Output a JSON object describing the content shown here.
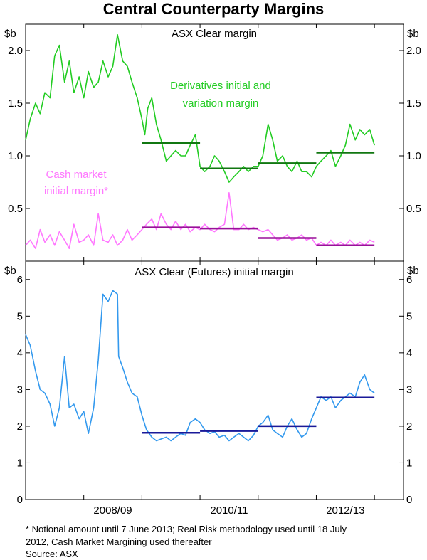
{
  "chart_data": {
    "title": "Central Counterparty Margins",
    "x_tick_labels": [
      "2008/09",
      "2010/11",
      "2012/13"
    ],
    "panels": [
      {
        "title": "ASX Clear margin",
        "unit_left": "$b",
        "unit_right": "$b",
        "ylim": [
          0,
          2.25
        ],
        "y_ticks": [
          0.5,
          1.0,
          1.5,
          2.0
        ],
        "y_tick_labels": [
          "0.5",
          "1.0",
          "1.5",
          "2.0"
        ],
        "series": [
          {
            "name": "Derivatives initial and variation margin",
            "label_lines": [
              "Derivatives initial and",
              "variation margin"
            ],
            "color": "#22cc22",
            "type": "line",
            "x": [
              2007.0,
              2007.08,
              2007.17,
              2007.25,
              2007.33,
              2007.42,
              2007.5,
              2007.58,
              2007.67,
              2007.75,
              2007.83,
              2007.92,
              2008.0,
              2008.08,
              2008.17,
              2008.25,
              2008.33,
              2008.42,
              2008.5,
              2008.58,
              2008.67,
              2008.75,
              2008.83,
              2008.92,
              2009.0,
              2009.05,
              2009.1,
              2009.17,
              2009.25,
              2009.33,
              2009.42,
              2009.5,
              2009.58,
              2009.67,
              2009.75,
              2009.83,
              2009.92,
              2010.0,
              2010.08,
              2010.17,
              2010.25,
              2010.33,
              2010.42,
              2010.5,
              2010.58,
              2010.67,
              2010.75,
              2010.83,
              2010.92,
              2011.0,
              2011.08,
              2011.17,
              2011.25,
              2011.33,
              2011.42,
              2011.5,
              2011.58,
              2011.67,
              2011.75,
              2011.83,
              2011.92,
              2012.0,
              2012.08,
              2012.17,
              2012.25,
              2012.33,
              2012.42,
              2012.5,
              2012.58,
              2012.67,
              2012.75,
              2012.83,
              2012.92,
              2013.0
            ],
            "y": [
              1.15,
              1.35,
              1.5,
              1.4,
              1.6,
              1.55,
              1.95,
              2.05,
              1.7,
              1.9,
              1.6,
              1.75,
              1.55,
              1.8,
              1.65,
              1.7,
              1.9,
              1.75,
              1.85,
              2.15,
              1.9,
              1.85,
              1.7,
              1.55,
              1.35,
              1.2,
              1.45,
              1.55,
              1.3,
              1.15,
              0.95,
              1.0,
              1.05,
              1.0,
              1.0,
              1.1,
              1.2,
              0.9,
              0.85,
              0.9,
              1.0,
              0.95,
              0.85,
              0.75,
              0.8,
              0.85,
              0.9,
              0.85,
              0.9,
              0.9,
              1.0,
              1.3,
              1.15,
              0.95,
              1.0,
              0.9,
              0.85,
              0.95,
              0.85,
              0.85,
              0.8,
              0.9,
              0.95,
              1.0,
              1.05,
              0.9,
              1.0,
              1.1,
              1.3,
              1.15,
              1.25,
              1.2,
              1.25,
              1.1
            ]
          },
          {
            "name": "Cash market initial margin*",
            "label_lines": [
              "Cash market",
              "initial margin*"
            ],
            "color": "#ff77ff",
            "type": "line",
            "x": [
              2007.0,
              2007.08,
              2007.17,
              2007.25,
              2007.33,
              2007.42,
              2007.5,
              2007.58,
              2007.67,
              2007.75,
              2007.83,
              2007.92,
              2008.0,
              2008.08,
              2008.17,
              2008.25,
              2008.33,
              2008.42,
              2008.5,
              2008.58,
              2008.67,
              2008.75,
              2008.83,
              2008.92,
              2009.0,
              2009.08,
              2009.17,
              2009.25,
              2009.33,
              2009.42,
              2009.5,
              2009.58,
              2009.67,
              2009.75,
              2009.83,
              2009.92,
              2010.0,
              2010.08,
              2010.17,
              2010.25,
              2010.33,
              2010.42,
              2010.5,
              2010.58,
              2010.67,
              2010.75,
              2010.83,
              2010.92,
              2011.0,
              2011.08,
              2011.17,
              2011.25,
              2011.33,
              2011.42,
              2011.5,
              2011.58,
              2011.67,
              2011.75,
              2011.83,
              2011.92,
              2012.0,
              2012.08,
              2012.17,
              2012.25,
              2012.33,
              2012.42,
              2012.5,
              2012.58,
              2012.67,
              2012.75,
              2012.83,
              2012.92,
              2013.0
            ],
            "y": [
              0.15,
              0.2,
              0.12,
              0.3,
              0.18,
              0.25,
              0.15,
              0.28,
              0.2,
              0.12,
              0.35,
              0.18,
              0.2,
              0.25,
              0.15,
              0.45,
              0.2,
              0.18,
              0.25,
              0.15,
              0.2,
              0.3,
              0.2,
              0.25,
              0.3,
              0.35,
              0.4,
              0.3,
              0.45,
              0.35,
              0.3,
              0.38,
              0.3,
              0.35,
              0.28,
              0.32,
              0.3,
              0.35,
              0.3,
              0.28,
              0.32,
              0.35,
              0.65,
              0.3,
              0.3,
              0.35,
              0.3,
              0.32,
              0.3,
              0.28,
              0.3,
              0.25,
              0.2,
              0.22,
              0.25,
              0.2,
              0.22,
              0.25,
              0.2,
              0.22,
              0.15,
              0.18,
              0.15,
              0.2,
              0.15,
              0.18,
              0.15,
              0.2,
              0.15,
              0.18,
              0.15,
              0.2,
              0.18
            ]
          }
        ],
        "averages": [
          {
            "series": "Derivatives initial and variation margin",
            "color": "#117711",
            "segments": [
              {
                "x0": 2009.0,
                "x1": 2010.0,
                "y": 1.12
              },
              {
                "x0": 2010.0,
                "x1": 2011.0,
                "y": 0.88
              },
              {
                "x0": 2011.0,
                "x1": 2012.0,
                "y": 0.93
              },
              {
                "x0": 2012.0,
                "x1": 2013.0,
                "y": 1.03
              }
            ]
          },
          {
            "series": "Cash market initial margin*",
            "color": "#991199",
            "segments": [
              {
                "x0": 2009.0,
                "x1": 2010.0,
                "y": 0.32
              },
              {
                "x0": 2010.0,
                "x1": 2011.0,
                "y": 0.31
              },
              {
                "x0": 2011.0,
                "x1": 2012.0,
                "y": 0.22
              },
              {
                "x0": 2012.0,
                "x1": 2013.0,
                "y": 0.15
              }
            ]
          }
        ]
      },
      {
        "title": "ASX Clear (Futures) initial margin",
        "unit_left": "$b",
        "unit_right": "$b",
        "ylim": [
          0,
          6.5
        ],
        "y_ticks": [
          0,
          1,
          2,
          3,
          4,
          5,
          6
        ],
        "y_tick_labels": [
          "0",
          "1",
          "2",
          "3",
          "4",
          "5",
          "6"
        ],
        "series": [
          {
            "name": "ASX Clear (Futures) initial margin",
            "color": "#3399ee",
            "type": "line",
            "x": [
              2007.0,
              2007.08,
              2007.17,
              2007.25,
              2007.33,
              2007.42,
              2007.5,
              2007.58,
              2007.67,
              2007.75,
              2007.83,
              2007.92,
              2008.0,
              2008.08,
              2008.17,
              2008.25,
              2008.33,
              2008.42,
              2008.5,
              2008.58,
              2008.6,
              2008.67,
              2008.75,
              2008.83,
              2008.92,
              2009.0,
              2009.08,
              2009.17,
              2009.25,
              2009.33,
              2009.42,
              2009.5,
              2009.58,
              2009.67,
              2009.75,
              2009.83,
              2009.92,
              2010.0,
              2010.08,
              2010.17,
              2010.25,
              2010.33,
              2010.42,
              2010.5,
              2010.58,
              2010.67,
              2010.75,
              2010.83,
              2010.92,
              2011.0,
              2011.08,
              2011.17,
              2011.25,
              2011.33,
              2011.42,
              2011.5,
              2011.58,
              2011.67,
              2011.75,
              2011.83,
              2011.92,
              2012.0,
              2012.08,
              2012.17,
              2012.25,
              2012.33,
              2012.42,
              2012.5,
              2012.58,
              2012.67,
              2012.75,
              2012.83,
              2012.92,
              2013.0
            ],
            "y": [
              4.5,
              4.2,
              3.5,
              3.0,
              2.9,
              2.6,
              2.0,
              2.5,
              3.9,
              2.5,
              2.6,
              2.2,
              2.4,
              1.8,
              2.5,
              3.8,
              5.6,
              5.4,
              5.7,
              5.6,
              3.9,
              3.6,
              3.2,
              2.9,
              2.8,
              2.3,
              1.9,
              1.7,
              1.6,
              1.65,
              1.7,
              1.6,
              1.7,
              1.8,
              1.75,
              2.1,
              2.2,
              2.1,
              1.9,
              1.8,
              1.85,
              1.7,
              1.75,
              1.6,
              1.7,
              1.8,
              1.7,
              1.6,
              1.75,
              2.0,
              2.1,
              2.3,
              1.9,
              1.8,
              1.7,
              2.0,
              2.2,
              1.9,
              1.7,
              1.8,
              2.2,
              2.5,
              2.8,
              2.7,
              2.8,
              2.5,
              2.7,
              2.8,
              2.9,
              2.8,
              3.2,
              3.4,
              3.0,
              2.9
            ]
          }
        ],
        "averages": [
          {
            "series": "ASX Clear (Futures) initial margin",
            "color": "#1a1a99",
            "segments": [
              {
                "x0": 2009.0,
                "x1": 2010.0,
                "y": 1.82
              },
              {
                "x0": 2010.0,
                "x1": 2011.0,
                "y": 1.87
              },
              {
                "x0": 2011.0,
                "x1": 2012.0,
                "y": 2.0
              },
              {
                "x0": 2012.0,
                "x1": 2013.0,
                "y": 2.78
              }
            ]
          }
        ]
      }
    ],
    "footnote_lines": [
      "*   Notional amount until 7 June 2013; Real Risk methodology used until 18 July",
      "     2012, Cash Market Margining used thereafter"
    ],
    "source": "Source: ASX"
  }
}
